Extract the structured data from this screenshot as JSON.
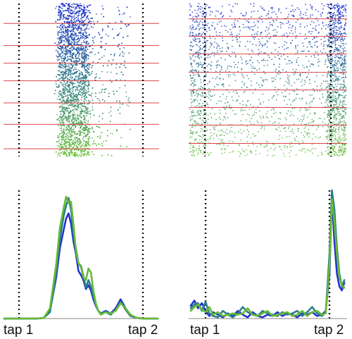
{
  "colors": {
    "series": [
      "#2233cc",
      "#2a7d8c",
      "#66bb33"
    ],
    "raster_top": "#1f2fd6",
    "raster_mid": "#2e7d88",
    "raster_bottom": "#6cc33a",
    "trial_line": "#dd4444",
    "tap_marker": "#111111"
  },
  "chart_data": [
    {
      "type": "scatter",
      "panel": "raster-left",
      "tap_labels": [],
      "grid": false,
      "ylim": [
        0,
        1
      ],
      "trial_band_boundaries": [
        0.0,
        0.13,
        0.275,
        0.39,
        0.505,
        0.65,
        0.79,
        0.95
      ],
      "tap_positions": [
        0,
        1
      ],
      "density_note": "dense cloud between 0.3 and 0.55 of the tap interval, sparse scatter to 0.85",
      "xlim": [
        -0.12,
        1.12
      ]
    },
    {
      "type": "scatter",
      "panel": "raster-right",
      "tap_labels": [],
      "grid": false,
      "ylim": [
        0,
        1
      ],
      "trial_band_boundaries": [
        0.1,
        0.215,
        0.33,
        0.45,
        0.565,
        0.68,
        0.795,
        0.915
      ],
      "tap_positions": [
        0,
        1
      ],
      "xlim": [
        -0.12,
        1.12
      ]
    },
    {
      "type": "line",
      "panel": "histogram-left",
      "tap_labels": [
        "tap 1",
        "tap 2"
      ],
      "tap_positions": [
        0,
        1
      ],
      "xlim": [
        -0.12,
        1.12
      ],
      "ylim": [
        0,
        1
      ],
      "grid": false,
      "x": [
        -0.12,
        -0.05,
        0.0,
        0.05,
        0.1,
        0.15,
        0.2,
        0.25,
        0.3,
        0.33,
        0.36,
        0.38,
        0.4,
        0.42,
        0.44,
        0.46,
        0.48,
        0.5,
        0.52,
        0.54,
        0.56,
        0.58,
        0.6,
        0.62,
        0.64,
        0.66,
        0.7,
        0.74,
        0.78,
        0.82,
        0.86,
        0.9,
        0.95,
        1.0,
        1.12
      ],
      "series": [
        {
          "values": [
            0,
            0,
            0,
            0,
            0,
            0,
            0.005,
            0.06,
            0.32,
            0.55,
            0.69,
            0.78,
            0.82,
            0.74,
            0.6,
            0.5,
            0.37,
            0.34,
            0.3,
            0.23,
            0.26,
            0.22,
            0.15,
            0.1,
            0.06,
            0.04,
            0.06,
            0.04,
            0.08,
            0.15,
            0.08,
            0.02,
            0.005,
            0,
            0
          ]
        },
        {
          "values": [
            0,
            0,
            0,
            0,
            0,
            0,
            0.005,
            0.05,
            0.36,
            0.62,
            0.8,
            0.88,
            0.94,
            0.85,
            0.66,
            0.54,
            0.43,
            0.41,
            0.33,
            0.24,
            0.3,
            0.25,
            0.17,
            0.11,
            0.06,
            0.04,
            0.05,
            0.03,
            0.07,
            0.13,
            0.07,
            0.02,
            0.005,
            0,
            0
          ]
        },
        {
          "values": [
            0,
            0,
            0,
            0,
            0,
            0,
            0.005,
            0.08,
            0.42,
            0.71,
            0.86,
            0.95,
            0.9,
            0.91,
            0.73,
            0.52,
            0.43,
            0.4,
            0.32,
            0.3,
            0.39,
            0.36,
            0.22,
            0.12,
            0.06,
            0.03,
            0.05,
            0.04,
            0.06,
            0.12,
            0.08,
            0.03,
            0.005,
            0,
            0
          ]
        }
      ]
    },
    {
      "type": "line",
      "panel": "histogram-right",
      "tap_labels": [
        "tap 1",
        "tap 2"
      ],
      "tap_positions": [
        0,
        1
      ],
      "xlim": [
        -0.12,
        1.12
      ],
      "ylim": [
        0,
        1
      ],
      "grid": false,
      "x": [
        -0.12,
        -0.09,
        -0.06,
        -0.03,
        0.0,
        0.03,
        0.06,
        0.1,
        0.14,
        0.18,
        0.22,
        0.26,
        0.3,
        0.34,
        0.38,
        0.42,
        0.46,
        0.5,
        0.54,
        0.58,
        0.62,
        0.66,
        0.7,
        0.74,
        0.78,
        0.82,
        0.86,
        0.9,
        0.94,
        0.97,
        1.0,
        1.02,
        1.04,
        1.06,
        1.08,
        1.1,
        1.12
      ],
      "series": [
        {
          "values": [
            0.1,
            0.14,
            0.08,
            0.12,
            0.06,
            0.02,
            0.05,
            0.03,
            0.01,
            0.04,
            0.02,
            0.06,
            0.03,
            0.01,
            0.05,
            0.02,
            0.01,
            0.03,
            0.02,
            0.05,
            0.02,
            0.04,
            0.03,
            0.01,
            0.04,
            0.03,
            0.05,
            0.02,
            0.03,
            0.06,
            0.35,
            0.95,
            0.6,
            0.35,
            0.25,
            0.22,
            0.28
          ]
        },
        {
          "values": [
            0.08,
            0.11,
            0.12,
            0.06,
            0.13,
            0.04,
            0.02,
            0.01,
            0.06,
            0.03,
            0.01,
            0.04,
            0.09,
            0.05,
            0.03,
            0.02,
            0.06,
            0.04,
            0.03,
            0.02,
            0.05,
            0.03,
            0.04,
            0.06,
            0.02,
            0.05,
            0.09,
            0.04,
            0.02,
            0.05,
            0.5,
            1.0,
            0.85,
            0.55,
            0.35,
            0.25,
            0.3
          ]
        },
        {
          "values": [
            0.06,
            0.09,
            0.11,
            0.07,
            0.05,
            0.09,
            0.03,
            0.05,
            0.02,
            0.03,
            0.04,
            0.03,
            0.04,
            0.08,
            0.03,
            0.02,
            0.04,
            0.06,
            0.02,
            0.03,
            0.04,
            0.05,
            0.02,
            0.03,
            0.06,
            0.02,
            0.05,
            0.06,
            0.03,
            0.04,
            0.42,
            0.93,
            0.75,
            0.5,
            0.32,
            0.26,
            0.24
          ]
        }
      ]
    }
  ]
}
